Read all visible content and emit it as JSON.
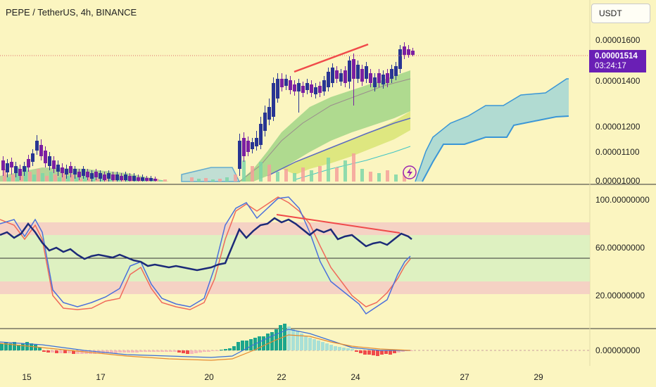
{
  "header": {
    "title": "PEPE / TetherUS, 4h, BINANCE",
    "currency_button": "USDT"
  },
  "price_tag": {
    "value": "0.00001514",
    "countdown": "03:24:17"
  },
  "colors": {
    "background": "#fbf5c0",
    "bull": "#1ca68c",
    "bear": "#f1505a",
    "candle_bull": "#283593",
    "candle_bear": "#7b1fa2",
    "accent_purple": "#6a1fb5",
    "trendline": "#f04a4a"
  },
  "chart_data": [
    {
      "type": "candlestick",
      "name": "price",
      "y_ticks": [
        "0.00001600",
        "0.00001400",
        "0.00001200",
        "0.00001100",
        "0.00001000"
      ],
      "x_ticks": [
        "15",
        "17",
        "20",
        "22",
        "24",
        "27",
        "29"
      ],
      "last_price": 1.514e-05,
      "grid": false
    },
    {
      "type": "line",
      "name": "rsi-stochastic",
      "y_ticks": [
        "100.00000000",
        "60.00000000",
        "20.00000000"
      ],
      "bands": {
        "upper": [
          70,
          80
        ],
        "lower": [
          20,
          30
        ]
      }
    },
    {
      "type": "bar",
      "name": "macd",
      "y_ticks": [
        "0.00000000"
      ]
    }
  ]
}
